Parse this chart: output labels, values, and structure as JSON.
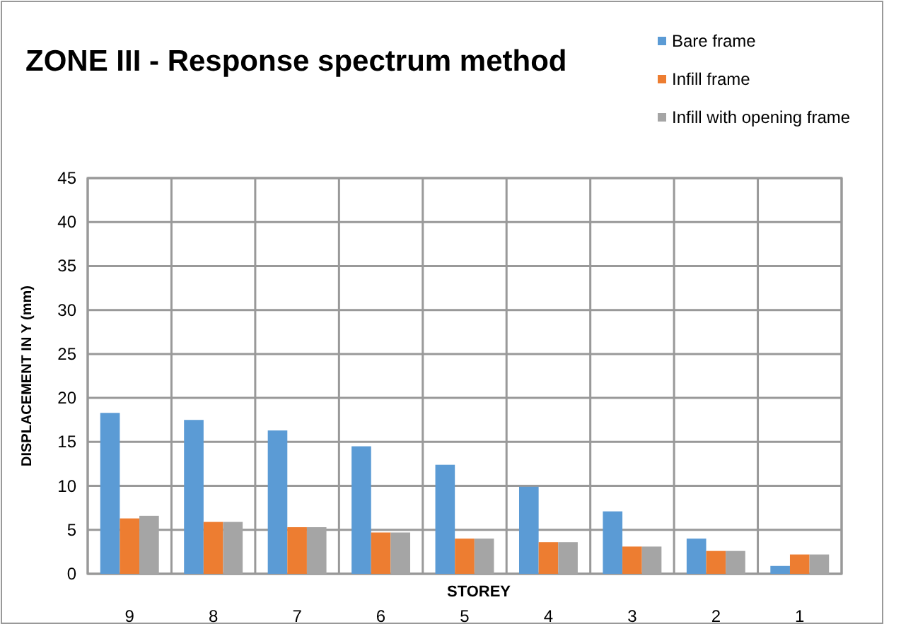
{
  "chart_data": {
    "type": "bar",
    "title": "ZONE III - Response spectrum method",
    "xlabel": "STOREY",
    "ylabel": "DISPLACEMENT IN Y (mm)",
    "categories": [
      "9",
      "8",
      "7",
      "6",
      "5",
      "4",
      "3",
      "2",
      "1"
    ],
    "series": [
      {
        "name": "Bare frame",
        "color": "#5b9bd5",
        "values": [
          18.3,
          17.5,
          16.3,
          14.5,
          12.4,
          9.9,
          7.1,
          4.0,
          0.9
        ]
      },
      {
        "name": "Infill frame",
        "color": "#ed7d31",
        "values": [
          6.3,
          5.9,
          5.3,
          4.7,
          4.0,
          3.6,
          3.1,
          2.6,
          2.2
        ]
      },
      {
        "name": "Infill with opening frame",
        "color": "#a5a5a5",
        "values": [
          6.6,
          5.9,
          5.3,
          4.7,
          4.0,
          3.6,
          3.1,
          2.6,
          2.2
        ]
      }
    ],
    "ylim": [
      0,
      45
    ],
    "yticks": [
      0,
      5,
      10,
      15,
      20,
      25,
      30,
      35,
      40,
      45
    ],
    "grid": true,
    "legend": "top right"
  }
}
